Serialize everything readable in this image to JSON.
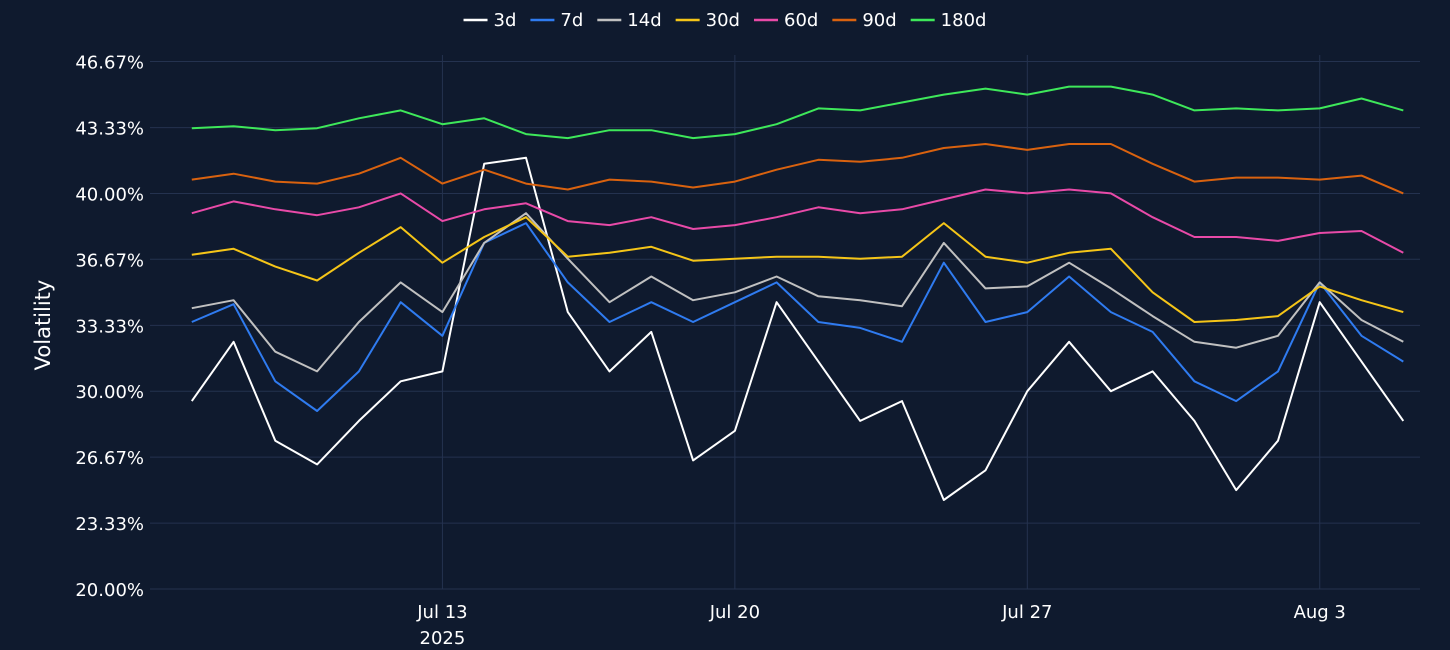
{
  "chart_data": {
    "type": "line",
    "y_label": "Volatility",
    "x": [
      "2025-07-07",
      "2025-07-08",
      "2025-07-09",
      "2025-07-10",
      "2025-07-11",
      "2025-07-12",
      "2025-07-13",
      "2025-07-14",
      "2025-07-15",
      "2025-07-16",
      "2025-07-17",
      "2025-07-18",
      "2025-07-19",
      "2025-07-20",
      "2025-07-21",
      "2025-07-22",
      "2025-07-23",
      "2025-07-24",
      "2025-07-25",
      "2025-07-26",
      "2025-07-27",
      "2025-07-28",
      "2025-07-29",
      "2025-07-30",
      "2025-07-31",
      "2025-08-01",
      "2025-08-02",
      "2025-08-03",
      "2025-08-04",
      "2025-08-05"
    ],
    "xlim": [
      "2025-07-06",
      "2025-08-05"
    ],
    "xticks": [
      {
        "value": "2025-07-13",
        "label": "Jul 13"
      },
      {
        "value": "2025-07-20",
        "label": "Jul 20"
      },
      {
        "value": "2025-07-27",
        "label": "Jul 27"
      },
      {
        "value": "2025-08-03",
        "label": "Aug 3"
      }
    ],
    "x_year_label": "2025",
    "ylim": [
      20,
      47
    ],
    "yticks": [
      {
        "value": 20,
        "label": "20.00%"
      },
      {
        "value": 23.33,
        "label": "23.33%"
      },
      {
        "value": 26.67,
        "label": "26.67%"
      },
      {
        "value": 30,
        "label": "30.00%"
      },
      {
        "value": 33.33,
        "label": "33.33%"
      },
      {
        "value": 36.67,
        "label": "36.67%"
      },
      {
        "value": 40,
        "label": "40.00%"
      },
      {
        "value": 43.33,
        "label": "43.33%"
      },
      {
        "value": 46.67,
        "label": "46.67%"
      }
    ],
    "grid": true,
    "legend": "top",
    "series": [
      {
        "name": "3d",
        "color": "#ffffff",
        "values": [
          29.5,
          32.5,
          27.5,
          26.3,
          28.5,
          30.5,
          31,
          41.5,
          41.8,
          34,
          31,
          33,
          26.5,
          28,
          34.5,
          31.5,
          28.5,
          29.5,
          24.5,
          26,
          30,
          32.5,
          30,
          31,
          28.5,
          25,
          27.5,
          34.5,
          31.5,
          28.5
        ]
      },
      {
        "name": "7d",
        "color": "#2f7bf0",
        "values": [
          33.5,
          34.4,
          30.5,
          29,
          31,
          34.5,
          32.8,
          37.5,
          38.5,
          35.5,
          33.5,
          34.5,
          33.5,
          34.5,
          35.5,
          33.5,
          33.2,
          32.5,
          36.5,
          33.5,
          34,
          35.8,
          34,
          33,
          30.5,
          29.5,
          31,
          35.5,
          32.8,
          31.5
        ]
      },
      {
        "name": "14d",
        "color": "#c0c0c0",
        "values": [
          34.2,
          34.6,
          32,
          31,
          33.5,
          35.5,
          34,
          37.5,
          39,
          36.7,
          34.5,
          35.8,
          34.6,
          35,
          35.8,
          34.8,
          34.6,
          34.3,
          37.5,
          35.2,
          35.3,
          36.5,
          35.2,
          33.8,
          32.5,
          32.2,
          32.8,
          35.5,
          33.6,
          32.5
        ]
      },
      {
        "name": "30d",
        "color": "#f5c518",
        "values": [
          36.9,
          37.2,
          36.3,
          35.6,
          37,
          38.3,
          36.5,
          37.8,
          38.8,
          36.8,
          37,
          37.3,
          36.6,
          36.7,
          36.8,
          36.8,
          36.7,
          36.8,
          38.5,
          36.8,
          36.5,
          37,
          37.2,
          35,
          33.5,
          33.6,
          33.8,
          35.3,
          34.6,
          34
        ]
      },
      {
        "name": "60d",
        "color": "#e84aa8",
        "values": [
          39,
          39.6,
          39.2,
          38.9,
          39.3,
          40,
          38.6,
          39.2,
          39.5,
          38.6,
          38.4,
          38.8,
          38.2,
          38.4,
          38.8,
          39.3,
          39,
          39.2,
          39.7,
          40.2,
          40,
          40.2,
          40,
          38.8,
          37.8,
          37.8,
          37.6,
          38,
          38.1,
          37
        ]
      },
      {
        "name": "90d",
        "color": "#d9620f",
        "values": [
          40.7,
          41,
          40.6,
          40.5,
          41,
          41.8,
          40.5,
          41.2,
          40.5,
          40.2,
          40.7,
          40.6,
          40.3,
          40.6,
          41.2,
          41.7,
          41.6,
          41.8,
          42.3,
          42.5,
          42.2,
          42.5,
          42.5,
          41.5,
          40.6,
          40.8,
          40.8,
          40.7,
          40.9,
          40
        ]
      },
      {
        "name": "180d",
        "color": "#3ee85a",
        "values": [
          43.3,
          43.4,
          43.2,
          43.3,
          43.8,
          44.2,
          43.5,
          43.8,
          43,
          42.8,
          43.2,
          43.2,
          42.8,
          43,
          43.5,
          44.3,
          44.2,
          44.6,
          45,
          45.3,
          45,
          45.4,
          45.4,
          45,
          44.2,
          44.3,
          44.2,
          44.3,
          44.8,
          44.2
        ]
      }
    ]
  }
}
